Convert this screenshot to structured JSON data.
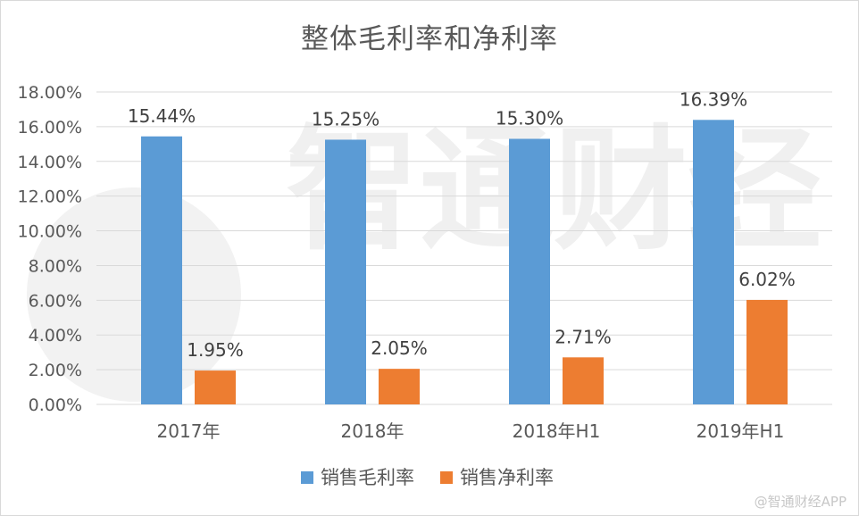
{
  "watermark": "@智通财经APP",
  "brand_watermark": "智通财经",
  "chart_data": {
    "type": "bar",
    "title": "整体毛利率和净利率",
    "categories": [
      "2017年",
      "2018年",
      "2018年H1",
      "2019年H1"
    ],
    "series": [
      {
        "name": "销售毛利率",
        "values": [
          15.44,
          15.25,
          15.3,
          16.39
        ],
        "labels": [
          "15.44%",
          "15.25%",
          "15.30%",
          "16.39%"
        ],
        "color": "#5b9bd5"
      },
      {
        "name": "销售净利率",
        "values": [
          1.95,
          2.05,
          2.71,
          6.02
        ],
        "labels": [
          "1.95%",
          "2.05%",
          "2.71%",
          "6.02%"
        ],
        "color": "#ed7d31"
      }
    ],
    "ylim": [
      0,
      18
    ],
    "ytick_step": 2,
    "ytick_labels": [
      "0.00%",
      "2.00%",
      "4.00%",
      "6.00%",
      "8.00%",
      "10.00%",
      "12.00%",
      "14.00%",
      "16.00%",
      "18.00%"
    ],
    "xlabel": "",
    "ylabel": "",
    "grid": true,
    "gridline_color": "#d9d9d9",
    "legend_position": "bottom"
  }
}
